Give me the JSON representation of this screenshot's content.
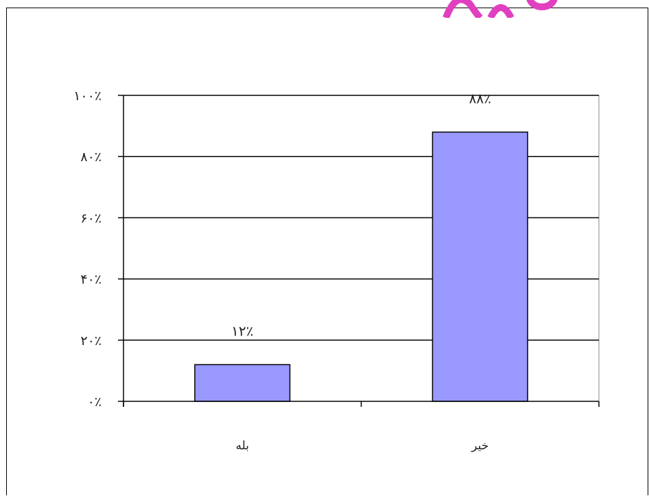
{
  "chart_data": {
    "type": "bar",
    "title": "",
    "xlabel": "",
    "ylabel": "",
    "categories": [
      "بله",
      "خیر"
    ],
    "values": [
      12,
      88
    ],
    "data_labels": [
      "۱۲٪",
      "۸۸٪"
    ],
    "ylim": [
      0,
      100
    ],
    "y_ticks": [
      0,
      20,
      40,
      60,
      80,
      100
    ],
    "y_tick_labels": [
      "۰٪",
      "۲۰٪",
      "۴۰٪",
      "۶۰٪",
      "۸۰٪",
      "۱۰۰٪"
    ],
    "grid": true,
    "legend": "none",
    "bar_color": "#9999ff",
    "bar_edge_color": "#000000"
  }
}
